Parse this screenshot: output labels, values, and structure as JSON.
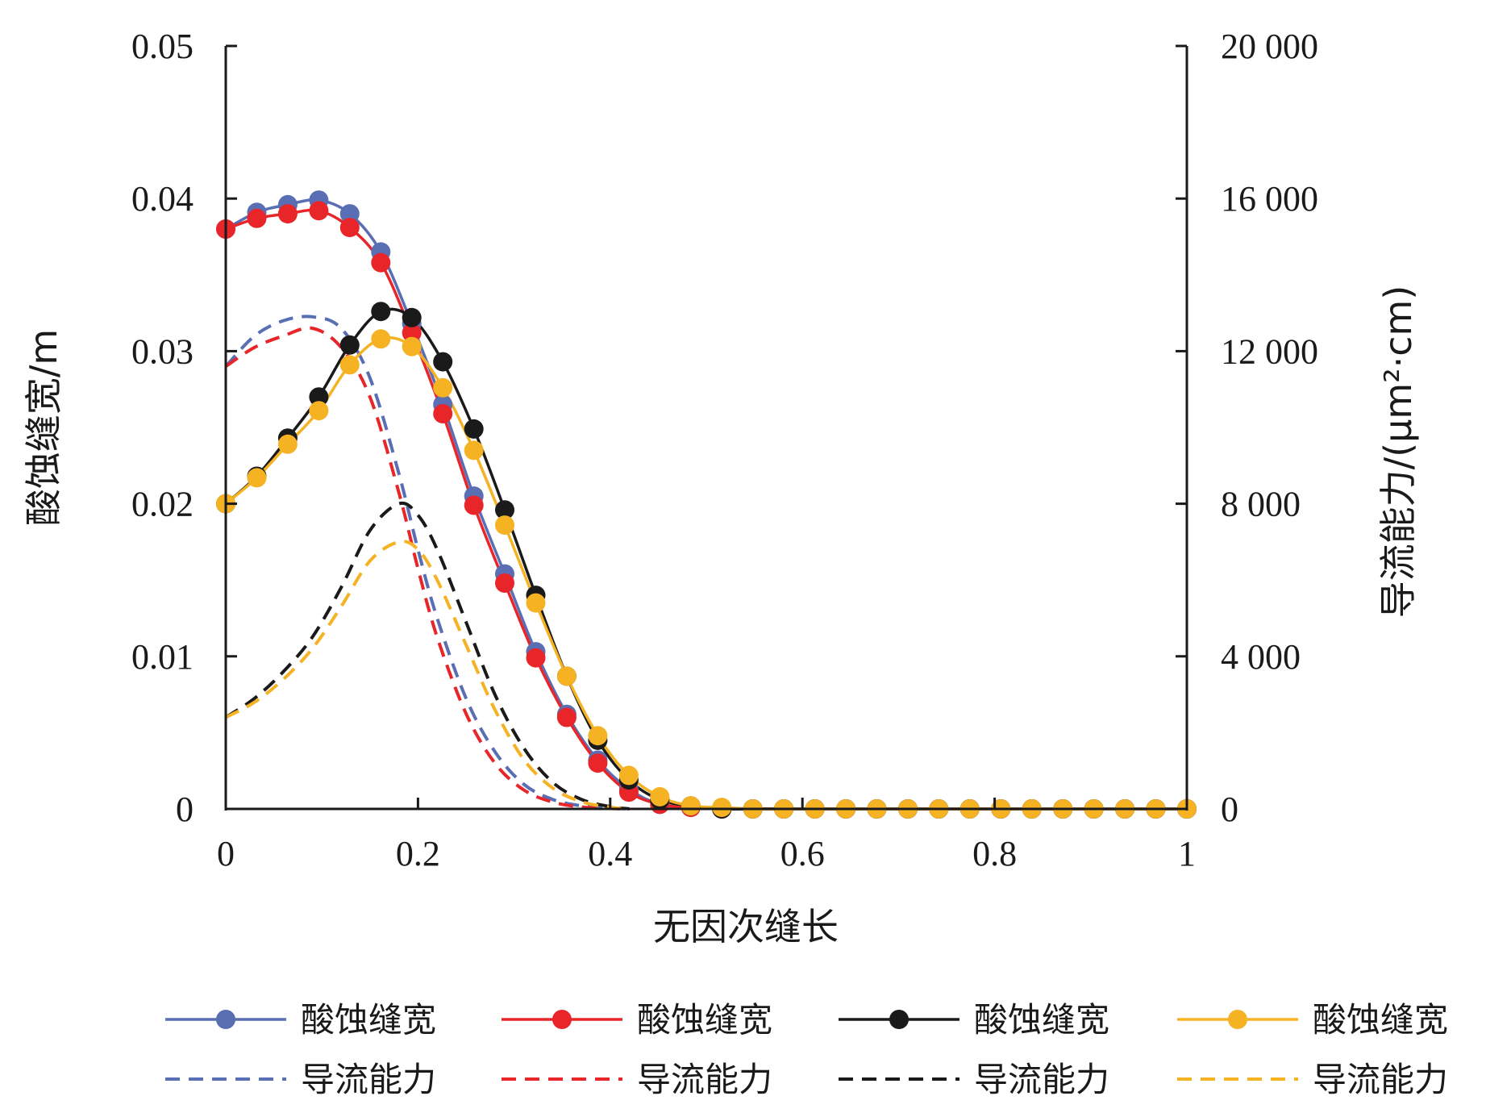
{
  "chart_data": {
    "type": "line",
    "xlabel": "无因次缝长",
    "ylabel": "酸蚀缝宽/m",
    "ylabel_right": "导流能力/(μm²·cm)",
    "xlim": [
      0,
      1
    ],
    "ylim": [
      0,
      0.05
    ],
    "ylim_right": [
      0,
      20000
    ],
    "x_ticks": [
      0,
      0.2,
      0.4,
      0.6,
      0.8,
      1
    ],
    "x_tick_labels": [
      "0",
      "0.2",
      "0.4",
      "0.6",
      "0.8",
      "1"
    ],
    "y_ticks": [
      0,
      0.01,
      0.02,
      0.03,
      0.04,
      0.05
    ],
    "y_tick_labels": [
      "0",
      "0.01",
      "0.02",
      "0.03",
      "0.04",
      "0.05"
    ],
    "y_right_ticks": [
      0,
      4000,
      8000,
      12000,
      16000,
      20000
    ],
    "y_right_tick_labels": [
      "0",
      "4 000",
      "8 000",
      "12 000",
      "16 000",
      "20 000"
    ],
    "grid": false,
    "legend_position": "bottom",
    "colors": [
      "#5a6eb4",
      "#e8262a",
      "#1a1a1a",
      "#f5b324"
    ],
    "x": [
      0,
      0.0323,
      0.0645,
      0.0968,
      0.129,
      0.1613,
      0.1935,
      0.2258,
      0.2581,
      0.2903,
      0.3226,
      0.3548,
      0.3871,
      0.4194,
      0.4516,
      0.4839,
      0.5161,
      0.5484,
      0.5806,
      0.6129,
      0.6452,
      0.6774,
      0.7097,
      0.7419,
      0.7742,
      0.8065,
      0.8387,
      0.871,
      0.9032,
      0.9355,
      0.9677,
      1.0
    ],
    "series": [
      {
        "name": "酸蚀缝宽",
        "axis": "left",
        "style": "solid-marker",
        "values": [
          0.038,
          0.0391,
          0.0396,
          0.0399,
          0.039,
          0.0365,
          0.0318,
          0.0265,
          0.0205,
          0.0154,
          0.0103,
          0.0062,
          0.0032,
          0.0013,
          0.0003,
          0.0001,
          0,
          0,
          0,
          0,
          0,
          0,
          0,
          0,
          0,
          0,
          0,
          0,
          0,
          0,
          0,
          0
        ]
      },
      {
        "name": "酸蚀缝宽",
        "axis": "left",
        "style": "solid-marker",
        "values": [
          0.038,
          0.0387,
          0.039,
          0.0392,
          0.0381,
          0.0358,
          0.0312,
          0.0259,
          0.0199,
          0.0148,
          0.0099,
          0.006,
          0.003,
          0.0011,
          0.0003,
          0.0001,
          0,
          0,
          0,
          0,
          0,
          0,
          0,
          0,
          0,
          0,
          0,
          0,
          0,
          0,
          0,
          0
        ]
      },
      {
        "name": "酸蚀缝宽",
        "axis": "left",
        "style": "solid-marker",
        "values": [
          0.02,
          0.0218,
          0.0243,
          0.027,
          0.0304,
          0.0326,
          0.0322,
          0.0293,
          0.0249,
          0.0196,
          0.014,
          0.0087,
          0.0045,
          0.0019,
          0.0006,
          0.0002,
          0,
          0,
          0,
          0,
          0,
          0,
          0,
          0,
          0,
          0,
          0,
          0,
          0,
          0,
          0,
          0
        ]
      },
      {
        "name": "酸蚀缝宽",
        "axis": "left",
        "style": "solid-marker",
        "values": [
          0.02,
          0.0217,
          0.0239,
          0.0261,
          0.0291,
          0.0308,
          0.0303,
          0.0276,
          0.0235,
          0.0186,
          0.0135,
          0.0087,
          0.0048,
          0.0022,
          0.0008,
          0.0002,
          0.0001,
          0,
          0,
          0,
          0,
          0,
          0,
          0,
          0,
          0,
          0,
          0,
          0,
          0,
          0,
          0
        ]
      },
      {
        "name": "导流能力",
        "axis": "right",
        "style": "dashed",
        "x": [
          0,
          0.03,
          0.06,
          0.09,
          0.12,
          0.15,
          0.18,
          0.2,
          0.22,
          0.25,
          0.28,
          0.31,
          0.34,
          0.37,
          0.4,
          0.42
        ],
        "values": [
          11600,
          12400,
          12800,
          12900,
          12600,
          11300,
          8800,
          6800,
          5000,
          2900,
          1500,
          650,
          250,
          80,
          20,
          0
        ]
      },
      {
        "name": "导流能力",
        "axis": "right",
        "style": "dashed",
        "x": [
          0,
          0.03,
          0.06,
          0.09,
          0.12,
          0.15,
          0.18,
          0.2,
          0.22,
          0.25,
          0.28,
          0.31,
          0.34,
          0.37,
          0.4,
          0.42
        ],
        "values": [
          11600,
          12100,
          12400,
          12600,
          12100,
          10800,
          8300,
          6300,
          4500,
          2500,
          1200,
          500,
          180,
          50,
          10,
          0
        ]
      },
      {
        "name": "导流能力",
        "axis": "right",
        "style": "dashed",
        "x": [
          0,
          0.03,
          0.06,
          0.09,
          0.12,
          0.15,
          0.18,
          0.2,
          0.22,
          0.25,
          0.28,
          0.31,
          0.34,
          0.37,
          0.4,
          0.42
        ],
        "values": [
          2400,
          2900,
          3600,
          4500,
          5800,
          7300,
          8000,
          7700,
          6800,
          4900,
          3000,
          1600,
          700,
          250,
          60,
          0
        ]
      },
      {
        "name": "导流能力",
        "axis": "right",
        "style": "dashed",
        "x": [
          0,
          0.03,
          0.06,
          0.09,
          0.12,
          0.15,
          0.18,
          0.2,
          0.22,
          0.25,
          0.28,
          0.31,
          0.34,
          0.37,
          0.4,
          0.42
        ],
        "values": [
          2400,
          2800,
          3400,
          4200,
          5300,
          6500,
          7000,
          6800,
          6000,
          4300,
          2600,
          1300,
          550,
          190,
          45,
          0
        ]
      }
    ]
  }
}
